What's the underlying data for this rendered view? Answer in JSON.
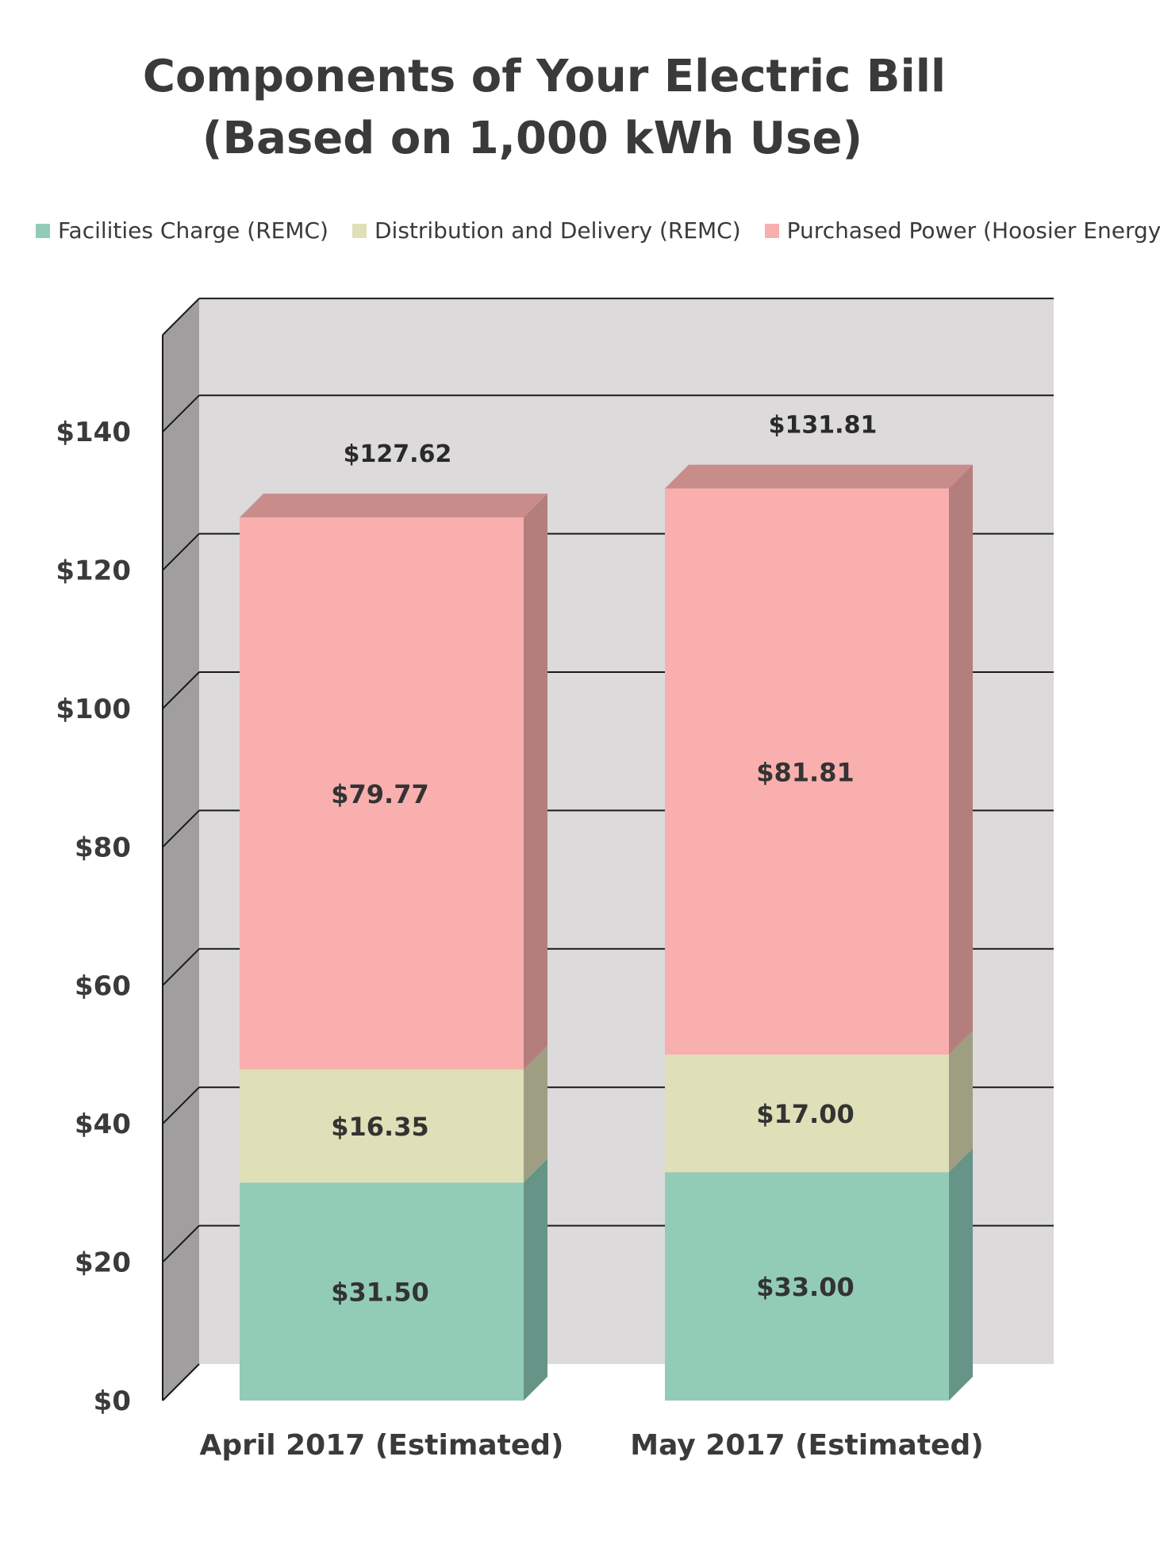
{
  "chart_data": {
    "type": "bar",
    "stacked": true,
    "three_d": true,
    "title_lines": [
      "Components of Your Electric Bill",
      "(Based on 1,000 kWh Use)"
    ],
    "categories": [
      "April 2017 (Estimated)",
      "May 2017 (Estimated)"
    ],
    "series": [
      {
        "name": "Facilities Charge (REMC)",
        "values": [
          31.5,
          33.0
        ],
        "labels": [
          "$31.50",
          "$33.00"
        ],
        "color": "#92ccb7",
        "side": "#669486"
      },
      {
        "name": "Distribution and Delivery (REMC)",
        "values": [
          16.35,
          17.0
        ],
        "labels": [
          "$16.35",
          "$17.00"
        ],
        "color": "#dfdfb8",
        "side": "#9e9e82"
      },
      {
        "name": "Purchased Power (Hoosier Energy)",
        "values": [
          79.77,
          81.81
        ],
        "labels": [
          "$79.77",
          "$81.81"
        ],
        "color": "#f8afae",
        "side": "#b47e7d",
        "top": "#c88d8b"
      }
    ],
    "totals": [
      "$127.62",
      "$131.81"
    ],
    "y_ticks": [
      0,
      20,
      40,
      60,
      80,
      100,
      120,
      140
    ],
    "y_tick_labels": [
      "$0",
      "$20",
      "$40",
      "$60",
      "$80",
      "$100",
      "$120",
      "$140"
    ],
    "ylim": [
      0,
      140
    ],
    "xlabel": "",
    "ylabel": "",
    "grid": true,
    "legend_position": "top",
    "wall_color": "#dcdadb",
    "side_wall_color": "#a09e9f"
  }
}
